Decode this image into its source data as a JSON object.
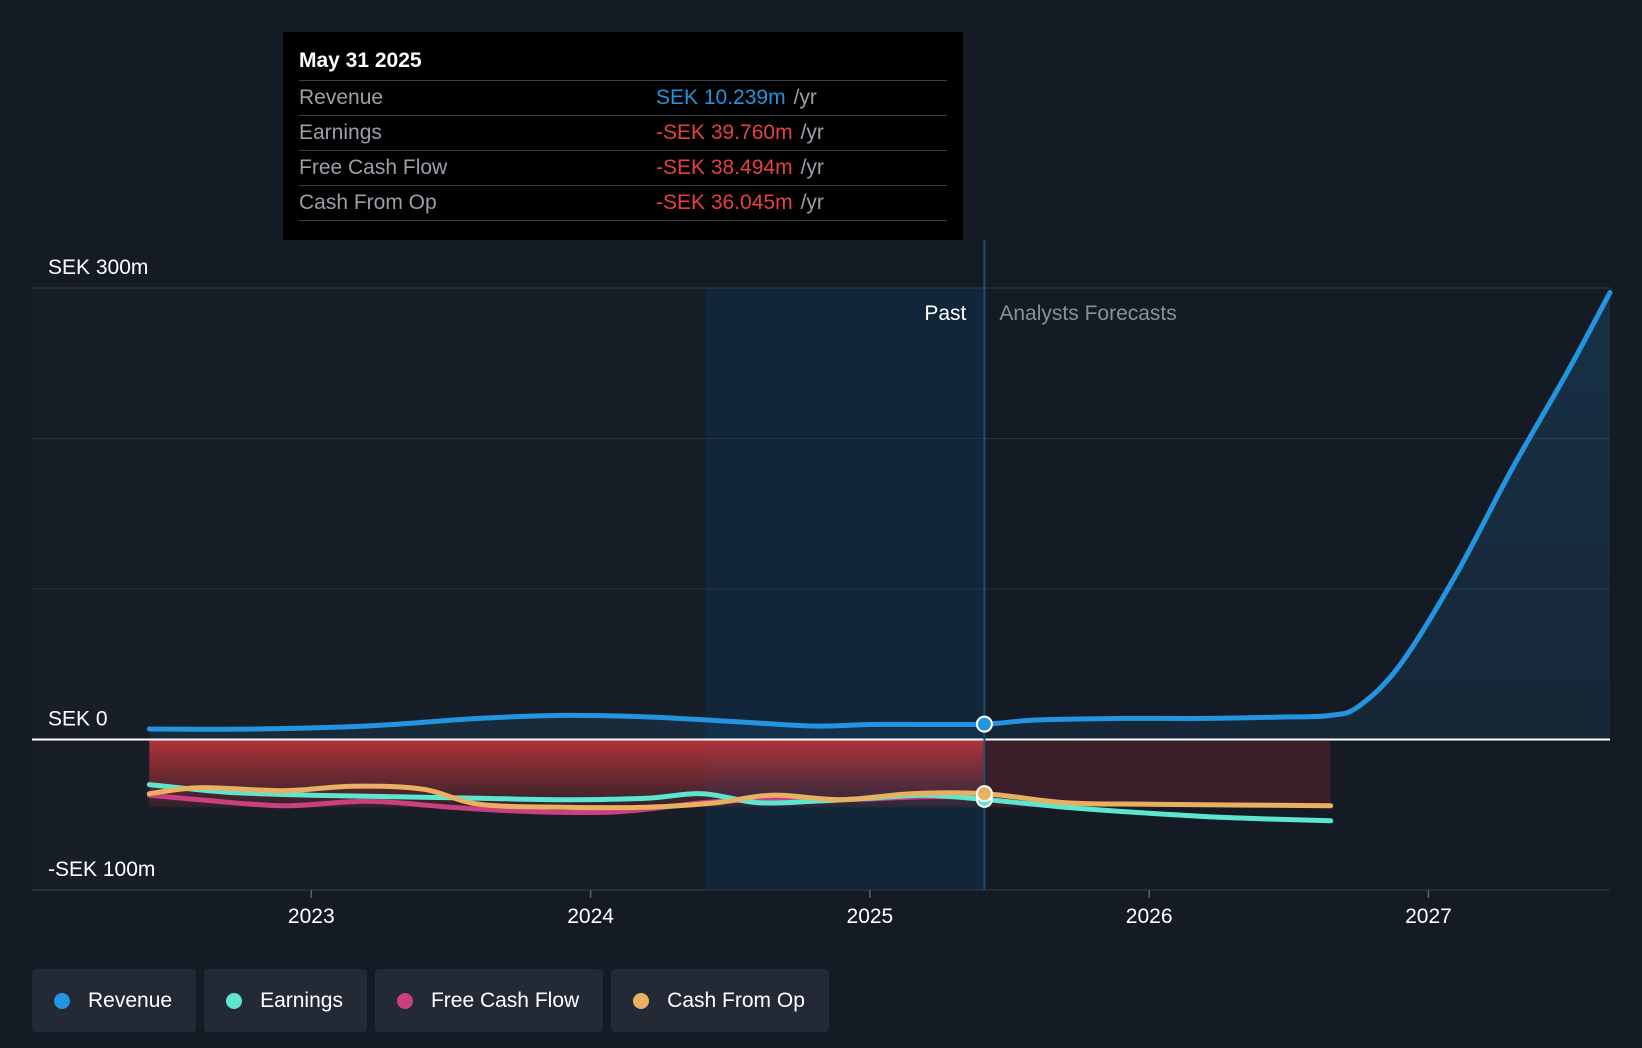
{
  "tooltip": {
    "date": "May 31 2025",
    "rows": [
      {
        "label": "Revenue",
        "value": "SEK 10.239m",
        "unit": "/yr",
        "color": "#2394df"
      },
      {
        "label": "Earnings",
        "value": "-SEK 39.760m",
        "unit": "/yr",
        "color": "#e64141"
      },
      {
        "label": "Free Cash Flow",
        "value": "-SEK 38.494m",
        "unit": "/yr",
        "color": "#e64141"
      },
      {
        "label": "Cash From Op",
        "value": "-SEK 36.045m",
        "unit": "/yr",
        "color": "#e64141"
      }
    ]
  },
  "legend": [
    {
      "label": "Revenue",
      "color": "#2394df"
    },
    {
      "label": "Earnings",
      "color": "#5ce6d0"
    },
    {
      "label": "Free Cash Flow",
      "color": "#c93f7f"
    },
    {
      "label": "Cash From Op",
      "color": "#e8b060"
    }
  ],
  "chart_data": {
    "type": "line",
    "x_unit": "year",
    "y_unit": "SEK m",
    "ylim": [
      -100,
      300
    ],
    "xlim": [
      2022.0,
      2027.65
    ],
    "y_tick_labels": [
      {
        "value": 300,
        "label": "SEK 300m"
      },
      {
        "value": 0,
        "label": "SEK 0"
      },
      {
        "value": -100,
        "label": "-SEK 100m"
      }
    ],
    "x_ticks": [
      2023,
      2024,
      2025,
      2026,
      2027
    ],
    "x_tick_labels": [
      "2023",
      "2024",
      "2025",
      "2026",
      "2027"
    ],
    "grid_lines": [
      300,
      200,
      100,
      0,
      -100
    ],
    "past_label": "Past",
    "forecast_label": "Analysts Forecasts",
    "past_forecast_divider_x": 2025.41,
    "highlight_region": [
      2024.41,
      2025.41
    ],
    "series": [
      {
        "name": "Revenue",
        "color": "#2394df",
        "x": [
          2022.42,
          2022.8,
          2023.2,
          2023.6,
          2023.9,
          2024.2,
          2024.5,
          2024.8,
          2025.0,
          2025.2,
          2025.41,
          2025.6,
          2025.9,
          2026.2,
          2026.5,
          2026.65,
          2026.75,
          2026.9,
          2027.1,
          2027.3,
          2027.5,
          2027.65
        ],
        "y": [
          7,
          7,
          9,
          14,
          16,
          15,
          12,
          9,
          10,
          10,
          10.2,
          13,
          14,
          14,
          15,
          16,
          22,
          50,
          110,
          180,
          245,
          297
        ]
      },
      {
        "name": "Earnings",
        "color": "#5ce6d0",
        "x": [
          2022.42,
          2022.7,
          2023.0,
          2023.3,
          2023.6,
          2023.9,
          2024.2,
          2024.4,
          2024.6,
          2024.8,
          2025.0,
          2025.2,
          2025.41,
          2025.7,
          2026.0,
          2026.3,
          2026.65
        ],
        "y": [
          -30,
          -35,
          -37,
          -38,
          -39,
          -40,
          -39,
          -36,
          -42,
          -41,
          -39,
          -37,
          -39.8,
          -45,
          -49,
          -52,
          -54
        ]
      },
      {
        "name": "Free Cash Flow",
        "color": "#c93f7f",
        "x": [
          2022.42,
          2022.6,
          2022.9,
          2023.2,
          2023.5,
          2023.8,
          2024.1,
          2024.4,
          2024.6,
          2024.9,
          2025.2,
          2025.41
        ],
        "y": [
          -37,
          -40,
          -44,
          -41,
          -45,
          -48,
          -48,
          -42,
          -40,
          -40,
          -38,
          -38.5
        ]
      },
      {
        "name": "Cash From Op",
        "color": "#e8b060",
        "x": [
          2022.42,
          2022.6,
          2022.9,
          2023.15,
          2023.4,
          2023.6,
          2023.9,
          2024.2,
          2024.45,
          2024.65,
          2024.9,
          2025.15,
          2025.41,
          2025.7,
          2026.0,
          2026.3,
          2026.65
        ],
        "y": [
          -36,
          -32,
          -34,
          -31,
          -33,
          -43,
          -45,
          -45,
          -42,
          -37,
          -40,
          -36,
          -36,
          -42,
          -43,
          -43.5,
          -44
        ]
      }
    ]
  }
}
